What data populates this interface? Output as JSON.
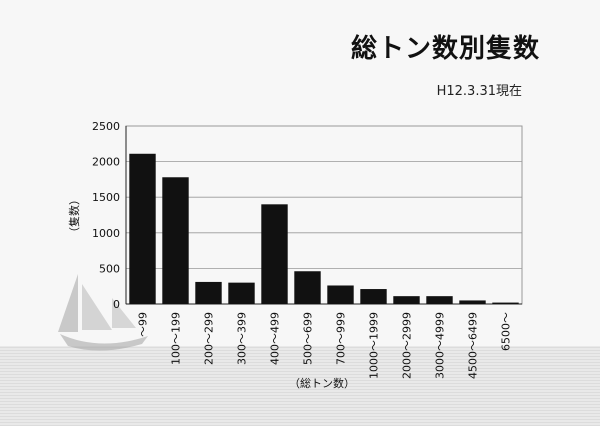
{
  "title": "総トン数別隻数",
  "subtitle": "H12.3.31現在",
  "chart_data": {
    "type": "bar",
    "title": "総トン数別隻数",
    "xlabel": "（総トン数）",
    "ylabel": "（隻数）",
    "ylim": [
      0,
      2500
    ],
    "yticks": [
      0,
      500,
      1000,
      1500,
      2000,
      2500
    ],
    "grid": true,
    "categories": [
      "〜99",
      "100〜199",
      "200〜299",
      "300〜399",
      "400〜499",
      "500〜699",
      "700〜999",
      "1000〜1999",
      "2000〜2999",
      "3000〜4999",
      "4500〜6499",
      "6500〜"
    ],
    "values": [
      2110,
      1780,
      310,
      300,
      1400,
      460,
      260,
      210,
      110,
      110,
      50,
      20
    ],
    "colors": {
      "bar": "#111111",
      "grid": "#999999",
      "axis": "#222222"
    }
  }
}
